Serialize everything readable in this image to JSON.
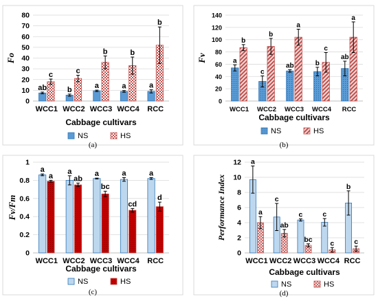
{
  "colors": {
    "ns_blue": "#5b9bd5",
    "ns_blue_light": "#bdd7ee",
    "hs_red": "#c0504d",
    "hs_dark_red": "#c00000",
    "hatch_bg": "#f2dcdb"
  },
  "chart_data": [
    {
      "panel": "(a)",
      "type": "bar",
      "ylabel": "Fo",
      "xlabel": "Cabbage cultivars",
      "categories": [
        "WCC1",
        "WCC2",
        "WCC3",
        "WCC4",
        "RCC"
      ],
      "ylim": [
        0,
        80
      ],
      "yticks": [
        0,
        10,
        20,
        30,
        40,
        50,
        60,
        70,
        80
      ],
      "legend_position": "bottom",
      "grid": true,
      "series": [
        {
          "name": "NS",
          "values": [
            7.5,
            5.5,
            9.5,
            9,
            9
          ],
          "errors": [
            0.8,
            1.0,
            0.7,
            0.8,
            1.5
          ],
          "labels": [
            "ab",
            "b",
            "a",
            "a",
            "a"
          ],
          "style": "ns"
        },
        {
          "name": "HS",
          "values": [
            18,
            21,
            36,
            33,
            52
          ],
          "errors": [
            2.5,
            3,
            6,
            8,
            17
          ],
          "labels": [
            "c",
            "c",
            "b",
            "b",
            "b"
          ],
          "style": "hs_check"
        }
      ]
    },
    {
      "panel": "(b)",
      "type": "bar",
      "ylabel": "Fv",
      "xlabel": "Cabbage cultivars",
      "categories": [
        "WCC1",
        "WCC2",
        "WCC3",
        "WCC4",
        "RCC"
      ],
      "ylim": [
        0,
        140
      ],
      "yticks": [
        0,
        20,
        40,
        60,
        80,
        100,
        120,
        140
      ],
      "legend_position": "bottom",
      "grid": true,
      "series": [
        {
          "name": "NS",
          "values": [
            54,
            32,
            49,
            48,
            53
          ],
          "errors": [
            5,
            9,
            2,
            7,
            12
          ],
          "labels": [
            "a",
            "c",
            "ab",
            "b",
            "ab"
          ],
          "style": "ns_dots"
        },
        {
          "name": "HS",
          "values": [
            87,
            89,
            104,
            63,
            104
          ],
          "errors": [
            5,
            13,
            13,
            16,
            25
          ],
          "labels": [
            "b",
            "b",
            "a",
            "c",
            "a"
          ],
          "style": "hs_diag"
        }
      ]
    },
    {
      "panel": "(c)",
      "type": "bar",
      "ylabel": "Fv/Fm",
      "xlabel": "Cabbage cultivars",
      "categories": [
        "WCC1",
        "WCC2",
        "WCC3",
        "WCC4",
        "RCC"
      ],
      "ylim": [
        0,
        1
      ],
      "yticks": [
        0,
        0.2,
        0.4,
        0.6,
        0.8,
        1
      ],
      "legend_position": "bottom",
      "grid": true,
      "series": [
        {
          "name": "NS",
          "values": [
            0.86,
            0.8,
            0.82,
            0.81,
            0.82
          ],
          "errors": [
            0.01,
            0.05,
            0.005,
            0.02,
            0.01
          ],
          "labels": [
            "a",
            "a",
            "a",
            "a",
            "a"
          ],
          "style": "ns_light"
        },
        {
          "name": "HS",
          "values": [
            0.79,
            0.75,
            0.65,
            0.47,
            0.51
          ],
          "errors": [
            0.01,
            0.02,
            0.03,
            0.02,
            0.05
          ],
          "labels": [
            "a",
            "ab",
            "bc",
            "cd",
            "d"
          ],
          "style": "hs_dark"
        }
      ]
    },
    {
      "panel": "(d)",
      "type": "bar",
      "ylabel": "Performance Index",
      "xlabel": "Cabbage cultivars",
      "categories": [
        "WCC1",
        "WCC2",
        "WCC3",
        "WCC4",
        "RCC"
      ],
      "ylim": [
        0,
        12
      ],
      "yticks": [
        0,
        2,
        4,
        6,
        8,
        10,
        12
      ],
      "legend_position": "bottom",
      "grid": true,
      "series": [
        {
          "name": "NS",
          "values": [
            9.7,
            4.75,
            4.35,
            4.05,
            6.6
          ],
          "errors": [
            1.8,
            1.8,
            0.15,
            0.5,
            1.6
          ],
          "labels": [
            "a",
            "c",
            "c",
            "c",
            "b"
          ],
          "style": "ns_light"
        },
        {
          "name": "HS",
          "values": [
            4,
            2.6,
            1,
            0.4,
            0.55
          ],
          "errors": [
            0.8,
            0.5,
            0.2,
            0.3,
            0.35
          ],
          "labels": [
            "a",
            "ab",
            "bc",
            "c",
            "c"
          ],
          "style": "hs_cross"
        }
      ]
    }
  ]
}
